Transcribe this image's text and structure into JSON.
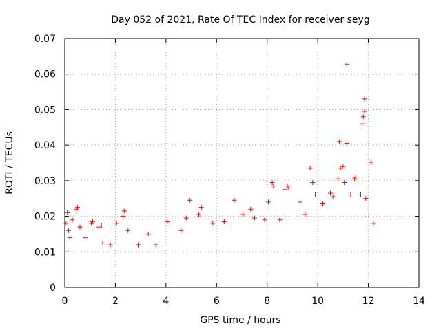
{
  "chart_data": {
    "type": "scatter",
    "title": "Day 052 of 2021, Rate Of TEC Index for receiver seyg",
    "xlabel": "GPS time / hours",
    "ylabel": "ROTI / TECUs",
    "xlim": [
      0,
      14
    ],
    "ylim": [
      0,
      0.07
    ],
    "x_ticks": [
      "0",
      "2",
      "4",
      "6",
      "8",
      "10",
      "12",
      "14"
    ],
    "y_ticks": [
      "0",
      "0.01",
      "0.02",
      "0.03",
      "0.04",
      "0.05",
      "0.06",
      "0.07"
    ],
    "grid": true,
    "marker": "+",
    "marker_color": "#ff0000",
    "series": [
      {
        "name": "ROTI",
        "points": [
          [
            0.05,
            0.018
          ],
          [
            0.1,
            0.021
          ],
          [
            0.15,
            0.016
          ],
          [
            0.2,
            0.014
          ],
          [
            0.3,
            0.019
          ],
          [
            0.45,
            0.022
          ],
          [
            0.5,
            0.0225
          ],
          [
            0.6,
            0.017
          ],
          [
            0.8,
            0.014
          ],
          [
            1.05,
            0.018
          ],
          [
            1.1,
            0.0185
          ],
          [
            1.35,
            0.017
          ],
          [
            1.45,
            0.0175
          ],
          [
            1.5,
            0.0125
          ],
          [
            1.8,
            0.012
          ],
          [
            2.05,
            0.018
          ],
          [
            2.3,
            0.02
          ],
          [
            2.35,
            0.0215
          ],
          [
            2.5,
            0.016
          ],
          [
            2.9,
            0.012
          ],
          [
            3.3,
            0.015
          ],
          [
            3.6,
            0.012
          ],
          [
            4.05,
            0.0185
          ],
          [
            4.6,
            0.016
          ],
          [
            4.8,
            0.0195
          ],
          [
            4.95,
            0.0245
          ],
          [
            5.3,
            0.0205
          ],
          [
            5.4,
            0.0225
          ],
          [
            5.85,
            0.018
          ],
          [
            6.3,
            0.0185
          ],
          [
            6.7,
            0.0245
          ],
          [
            7.05,
            0.0205
          ],
          [
            7.35,
            0.022
          ],
          [
            7.5,
            0.0195
          ],
          [
            7.9,
            0.019
          ],
          [
            8.05,
            0.024
          ],
          [
            8.2,
            0.0295
          ],
          [
            8.25,
            0.0285
          ],
          [
            8.5,
            0.019
          ],
          [
            8.7,
            0.0275
          ],
          [
            8.8,
            0.0285
          ],
          [
            8.85,
            0.028
          ],
          [
            9.3,
            0.024
          ],
          [
            9.5,
            0.0205
          ],
          [
            9.7,
            0.0335
          ],
          [
            9.8,
            0.0295
          ],
          [
            9.9,
            0.026
          ],
          [
            10.2,
            0.0235
          ],
          [
            10.5,
            0.0265
          ],
          [
            10.6,
            0.0255
          ],
          [
            10.8,
            0.0305
          ],
          [
            10.85,
            0.041
          ],
          [
            10.9,
            0.0335
          ],
          [
            11.0,
            0.034
          ],
          [
            11.05,
            0.0295
          ],
          [
            11.15,
            0.0405
          ],
          [
            11.15,
            0.0628
          ],
          [
            11.3,
            0.026
          ],
          [
            11.45,
            0.0305
          ],
          [
            11.5,
            0.031
          ],
          [
            11.7,
            0.026
          ],
          [
            11.75,
            0.046
          ],
          [
            11.8,
            0.048
          ],
          [
            11.85,
            0.0495
          ],
          [
            11.85,
            0.053
          ],
          [
            11.9,
            0.025
          ],
          [
            12.1,
            0.0352
          ],
          [
            12.2,
            0.018
          ]
        ]
      }
    ]
  }
}
